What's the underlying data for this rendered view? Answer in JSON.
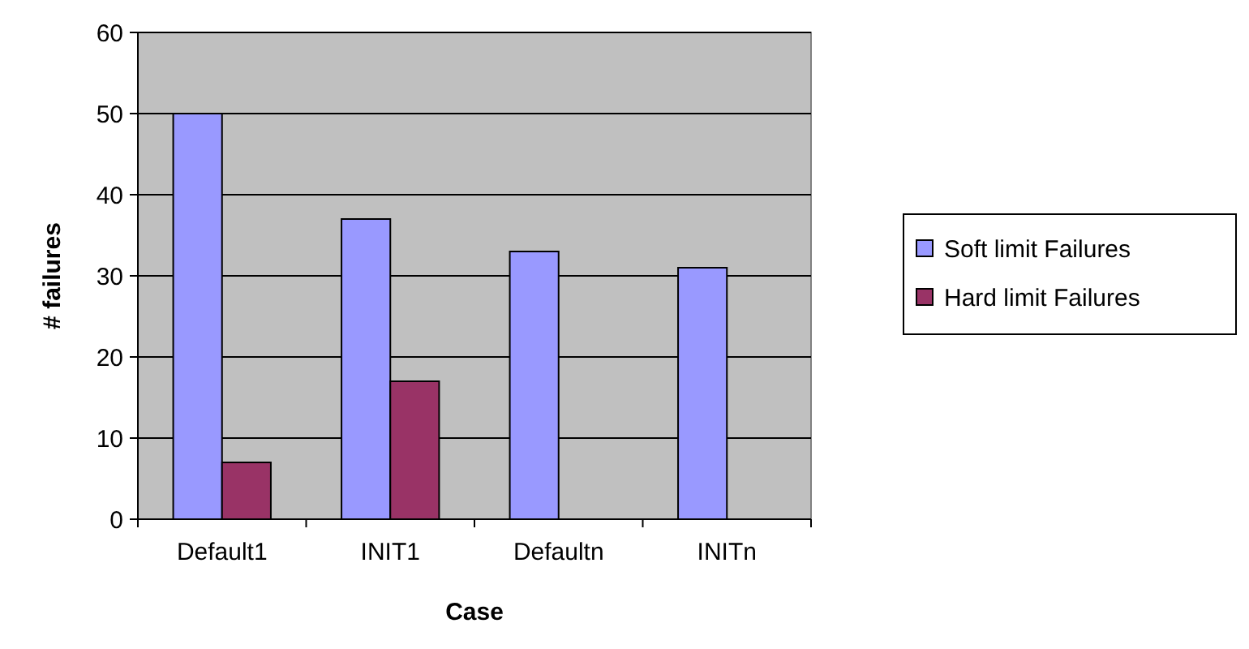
{
  "chart_data": {
    "type": "bar",
    "xlabel": "Case",
    "ylabel": "# failures",
    "categories": [
      "Default1",
      "INIT1",
      "Defaultn",
      "INITn"
    ],
    "series": [
      {
        "name": "Soft limit Failures",
        "color": "#9999ff",
        "values": [
          50,
          37,
          33,
          31
        ]
      },
      {
        "name": "Hard limit Failures",
        "color": "#993366",
        "values": [
          7,
          17,
          null,
          null
        ]
      }
    ],
    "ylim": [
      0,
      60
    ],
    "yticks": [
      0,
      10,
      20,
      30,
      40,
      50,
      60
    ],
    "grid": "y",
    "legend": "right"
  }
}
